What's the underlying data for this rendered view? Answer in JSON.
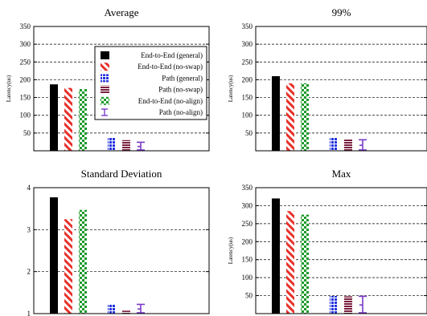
{
  "colors": {
    "end_to_end_general": "#000000",
    "end_to_end_noswap": "#e8302a",
    "path_general": "#2432e0",
    "path_noswap": "#7a1f3d",
    "end_to_end_noalign": "#1c9a2a",
    "path_noalign": "#7a3ac8"
  },
  "chart_data": [
    {
      "type": "bar",
      "title": "Average",
      "ylabel": "Latency(us)",
      "ylim": [
        0,
        350
      ],
      "yticks": [
        50,
        100,
        150,
        200,
        250,
        300,
        350
      ],
      "grid": true,
      "legend": "top-center",
      "series": [
        {
          "name": "End-to-End (general)",
          "value": 187,
          "group": 0,
          "pattern": "solid"
        },
        {
          "name": "End-to-End (no-swap)",
          "value": 177,
          "group": 0,
          "pattern": "diag"
        },
        {
          "name": "Path (general)",
          "value": 37,
          "group": 1,
          "pattern": "blocks"
        },
        {
          "name": "Path (no-swap)",
          "value": 30,
          "group": 1,
          "pattern": "hstripes"
        },
        {
          "name": "End-to-End (no-align)",
          "value": 174,
          "group": 0,
          "pattern": "checker"
        },
        {
          "name": "Path (no-align)",
          "value": 24,
          "group": 1,
          "pattern": "errbar"
        }
      ]
    },
    {
      "type": "bar",
      "title": "99%",
      "ylabel": "Latency(us)",
      "ylim": [
        0,
        350
      ],
      "yticks": [
        50,
        100,
        150,
        200,
        250,
        300,
        350
      ],
      "grid": true,
      "series": [
        {
          "name": "End-to-End (general)",
          "value": 210,
          "group": 0,
          "pattern": "solid"
        },
        {
          "name": "End-to-End (no-swap)",
          "value": 190,
          "group": 0,
          "pattern": "diag"
        },
        {
          "name": "Path (general)",
          "value": 38,
          "group": 1,
          "pattern": "blocks"
        },
        {
          "name": "Path (no-swap)",
          "value": 34,
          "group": 1,
          "pattern": "hstripes"
        },
        {
          "name": "End-to-End (no-align)",
          "value": 190,
          "group": 0,
          "pattern": "checker"
        },
        {
          "name": "Path (no-align)",
          "value": 31,
          "group": 1,
          "pattern": "errbar"
        }
      ]
    },
    {
      "type": "bar",
      "title": "Standard Deviation",
      "ylabel": "",
      "ylim": [
        1,
        4
      ],
      "yticks": [
        1,
        2,
        3,
        4
      ],
      "grid": true,
      "series": [
        {
          "name": "End-to-End (general)",
          "value": 3.77,
          "group": 0,
          "pattern": "solid"
        },
        {
          "name": "End-to-End (no-swap)",
          "value": 3.25,
          "group": 0,
          "pattern": "diag"
        },
        {
          "name": "Path (general)",
          "value": 1.22,
          "group": 1,
          "pattern": "blocks"
        },
        {
          "name": "Path (no-swap)",
          "value": 1.07,
          "group": 1,
          "pattern": "hstripes"
        },
        {
          "name": "End-to-End (no-align)",
          "value": 3.47,
          "group": 0,
          "pattern": "checker"
        },
        {
          "name": "Path (no-align)",
          "value": 1.22,
          "group": 1,
          "pattern": "errbar"
        }
      ]
    },
    {
      "type": "bar",
      "title": "Max",
      "ylabel": "Latency(us)",
      "ylim": [
        0,
        350
      ],
      "yticks": [
        50,
        100,
        150,
        200,
        250,
        300,
        350
      ],
      "grid": true,
      "series": [
        {
          "name": "End-to-End (general)",
          "value": 320,
          "group": 0,
          "pattern": "solid"
        },
        {
          "name": "End-to-End (no-swap)",
          "value": 285,
          "group": 0,
          "pattern": "diag"
        },
        {
          "name": "Path (general)",
          "value": 49,
          "group": 1,
          "pattern": "blocks"
        },
        {
          "name": "Path (no-swap)",
          "value": 48,
          "group": 1,
          "pattern": "hstripes"
        },
        {
          "name": "End-to-End (no-align)",
          "value": 275,
          "group": 0,
          "pattern": "checker"
        },
        {
          "name": "Path (no-align)",
          "value": 48,
          "group": 1,
          "pattern": "errbar"
        }
      ]
    }
  ]
}
